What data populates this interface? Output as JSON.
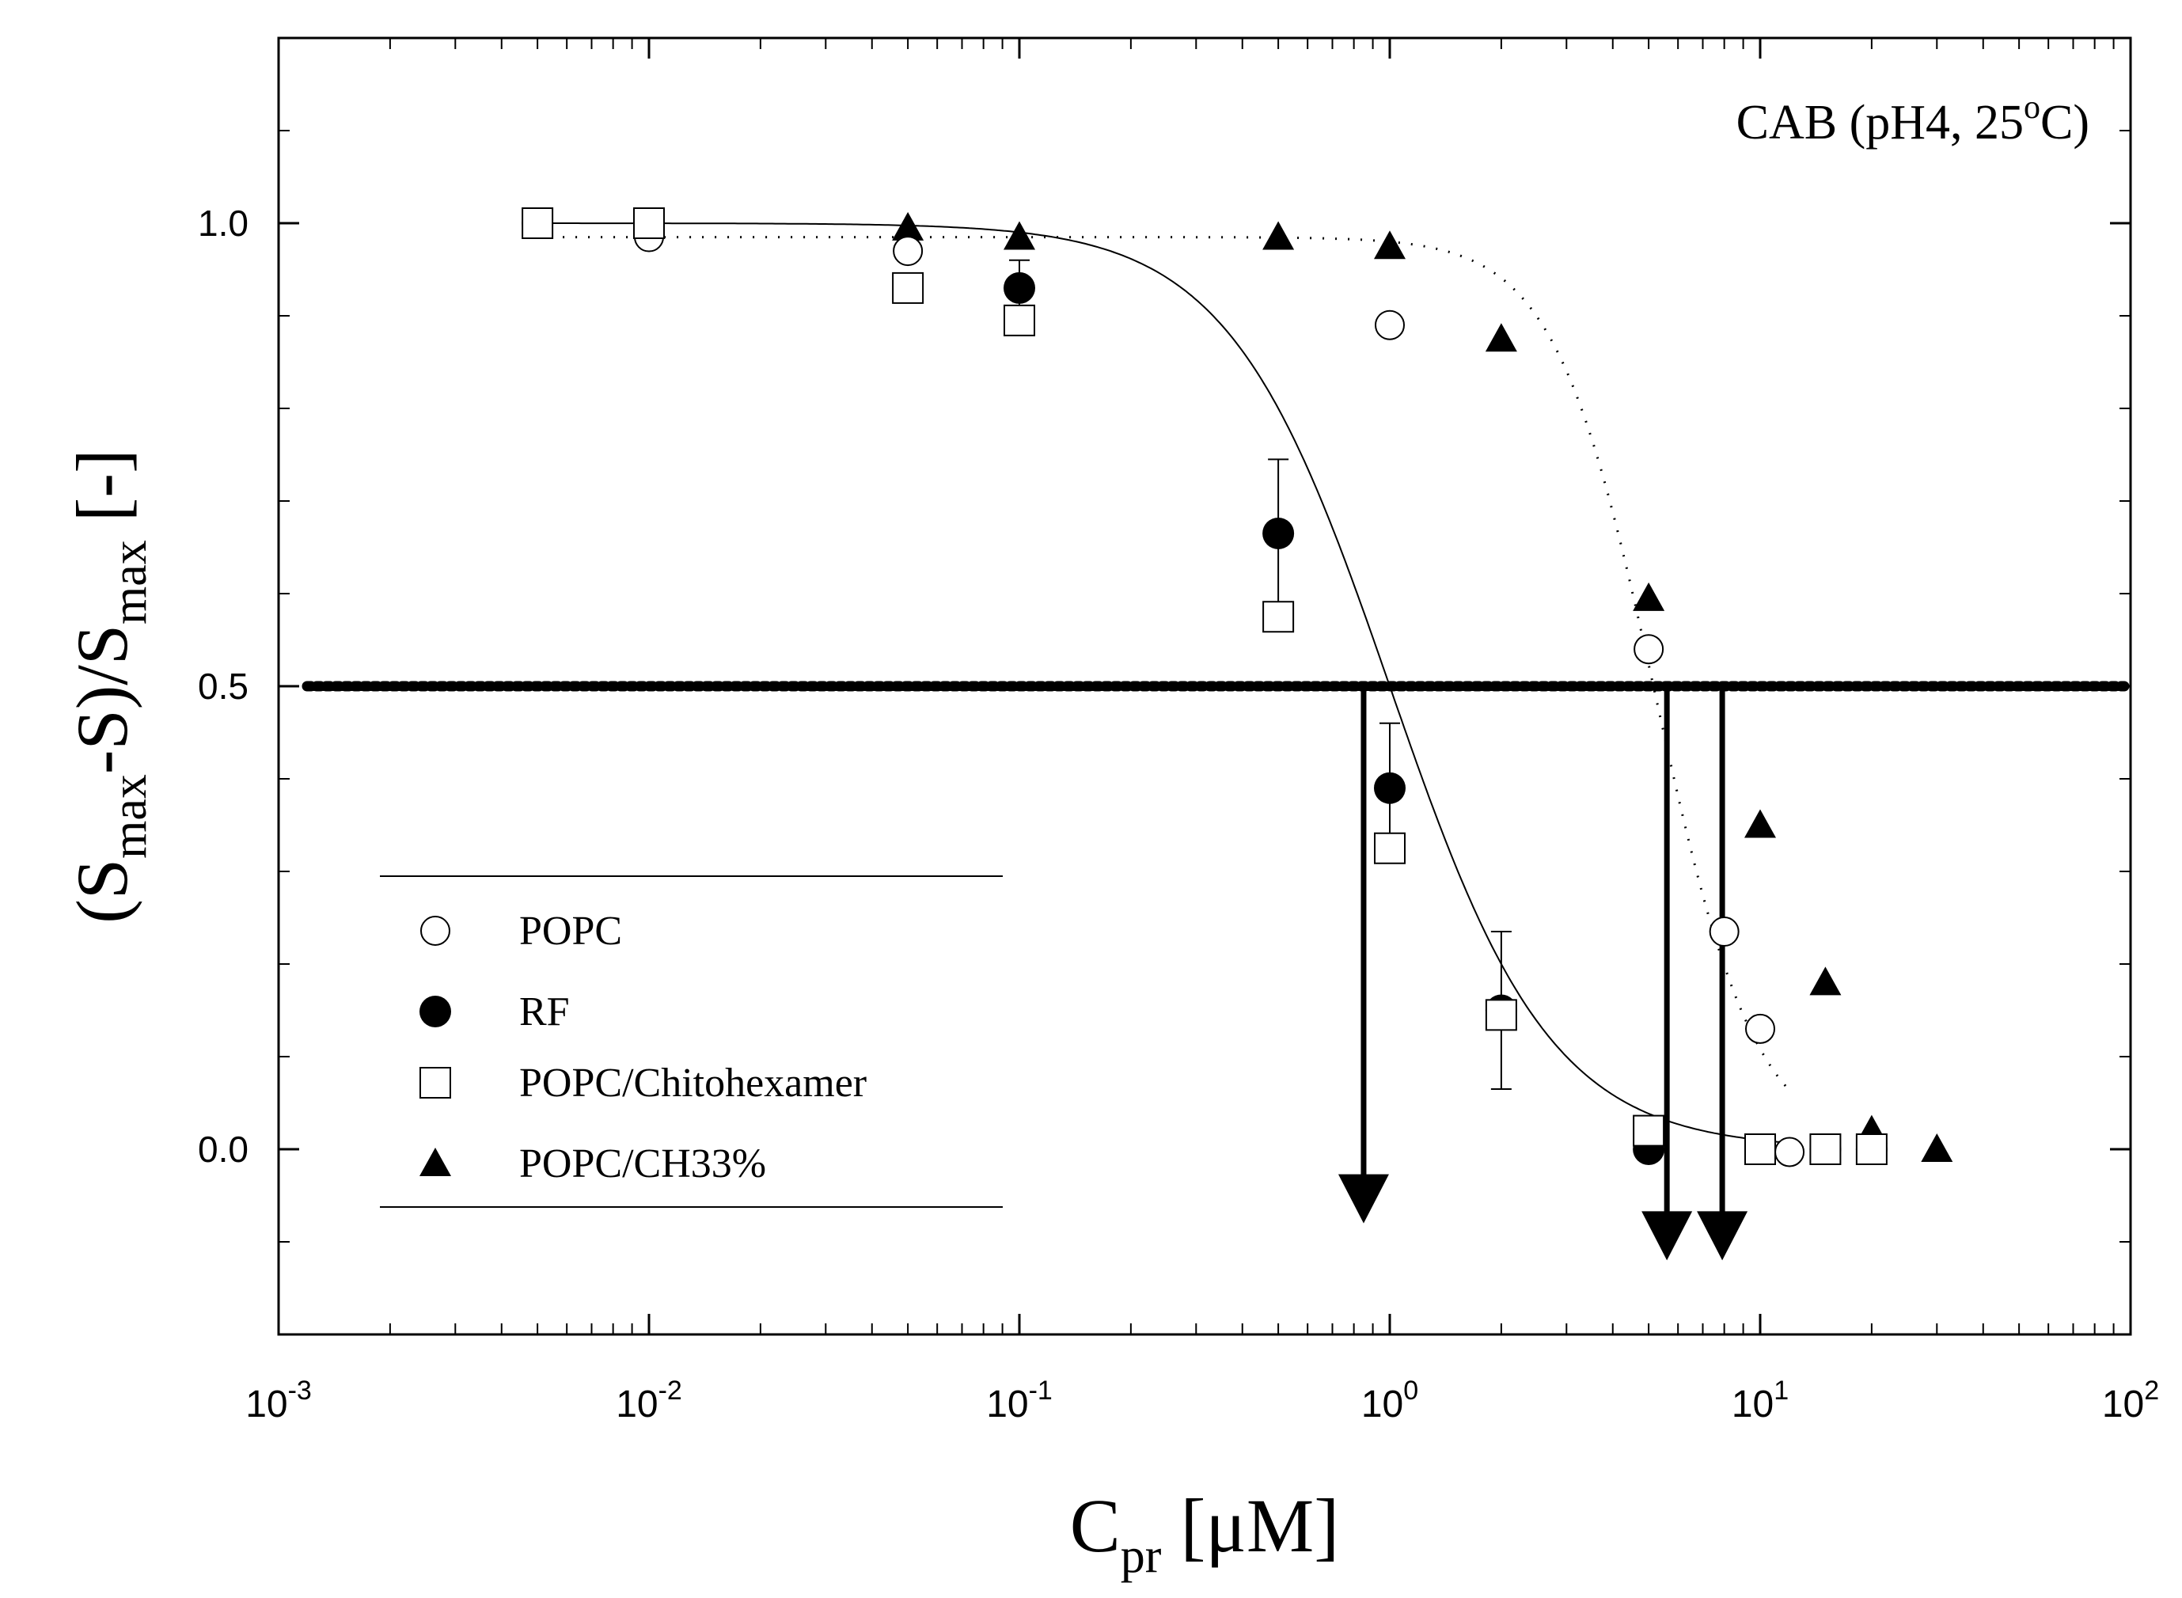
{
  "chart_data": {
    "type": "scatter",
    "annotation": {
      "main": "CAB (pH4, 25",
      "sup": "o",
      "tail": "C)"
    },
    "xlabel": {
      "main": "C",
      "sub": "pr",
      "tail": " [μM]"
    },
    "ylabel": {
      "p1": "(S",
      "s1": "max",
      "p2": "-S)/S",
      "s2": "max",
      "p3": " [-]"
    },
    "xscale": "log",
    "xlim": [
      0.001,
      100
    ],
    "ylim": [
      -0.2,
      1.2
    ],
    "yticks": [
      "0.0",
      "0.5",
      "1.0"
    ],
    "ytick_values": [
      0.0,
      0.5,
      1.0
    ],
    "yminor_values": [
      -0.1,
      0.1,
      0.2,
      0.3,
      0.4,
      0.6,
      0.7,
      0.8,
      0.9,
      1.1
    ],
    "xticks": [
      {
        "value": 0.001,
        "base": "10",
        "exp": "-3"
      },
      {
        "value": 0.01,
        "base": "10",
        "exp": "-2"
      },
      {
        "value": 0.1,
        "base": "10",
        "exp": "-1"
      },
      {
        "value": 1,
        "base": "10",
        "exp": "0"
      },
      {
        "value": 10,
        "base": "10",
        "exp": "1"
      },
      {
        "value": 100,
        "base": "10",
        "exp": "2"
      }
    ],
    "threshold_line": 0.5,
    "arrows": [
      {
        "x": 0.85,
        "y_from": 0.5,
        "y_to": -0.08
      },
      {
        "x": 5.6,
        "y_from": 0.5,
        "y_to": -0.12
      },
      {
        "x": 7.9,
        "y_from": 0.5,
        "y_to": -0.12
      }
    ],
    "series": [
      {
        "name": "POPC",
        "marker": "open-circle",
        "points": [
          [
            0.005,
            1.0
          ],
          [
            0.01,
            0.985
          ],
          [
            0.05,
            0.97
          ],
          [
            1,
            0.89
          ],
          [
            5,
            0.54
          ],
          [
            8,
            0.235
          ],
          [
            10,
            0.13
          ],
          [
            12,
            -0.003
          ]
        ]
      },
      {
        "name": "RF",
        "marker": "filled-circle",
        "points": [
          [
            0.005,
            1.0
          ],
          [
            0.01,
            1.0
          ],
          [
            0.1,
            0.93
          ],
          [
            0.5,
            0.665
          ],
          [
            1,
            0.39
          ],
          [
            2,
            0.15
          ],
          [
            5,
            0.0
          ],
          [
            10,
            0.0
          ],
          [
            15,
            0.0
          ],
          [
            20,
            0.0
          ]
        ],
        "errors": [
          [
            0.1,
            0.03
          ],
          [
            0.5,
            0.08
          ],
          [
            1,
            0.07
          ],
          [
            2,
            0.085
          ]
        ]
      },
      {
        "name": "POPC/Chitohexamer",
        "marker": "open-square",
        "points": [
          [
            0.005,
            1.0
          ],
          [
            0.01,
            1.0
          ],
          [
            0.05,
            0.93
          ],
          [
            0.1,
            0.895
          ],
          [
            0.5,
            0.575
          ],
          [
            1,
            0.325
          ],
          [
            2,
            0.145
          ],
          [
            5,
            0.02
          ],
          [
            10,
            0.0
          ],
          [
            15,
            0.0
          ],
          [
            20,
            0.0
          ]
        ]
      },
      {
        "name": "POPC/CH33%",
        "marker": "filled-triangle",
        "points": [
          [
            0.005,
            1.0
          ],
          [
            0.01,
            1.0
          ],
          [
            0.05,
            0.995
          ],
          [
            0.1,
            0.985
          ],
          [
            0.5,
            0.985
          ],
          [
            1,
            0.975
          ],
          [
            2,
            0.875
          ],
          [
            5,
            0.595
          ],
          [
            10,
            0.35
          ],
          [
            15,
            0.18
          ],
          [
            20,
            0.02
          ],
          [
            30,
            0.0
          ]
        ]
      }
    ],
    "fits": [
      {
        "name": "RF fit",
        "style": "solid",
        "x0": 1.0,
        "p": 2.0
      },
      {
        "name": "POPC fit",
        "style": "dotted",
        "x0": 5.2,
        "p": 3.2,
        "top": 0.985
      }
    ],
    "legend": {
      "position": "lower-left",
      "entries": [
        "POPC",
        "RF",
        "POPC/Chitohexamer",
        "POPC/CH33%"
      ]
    }
  }
}
